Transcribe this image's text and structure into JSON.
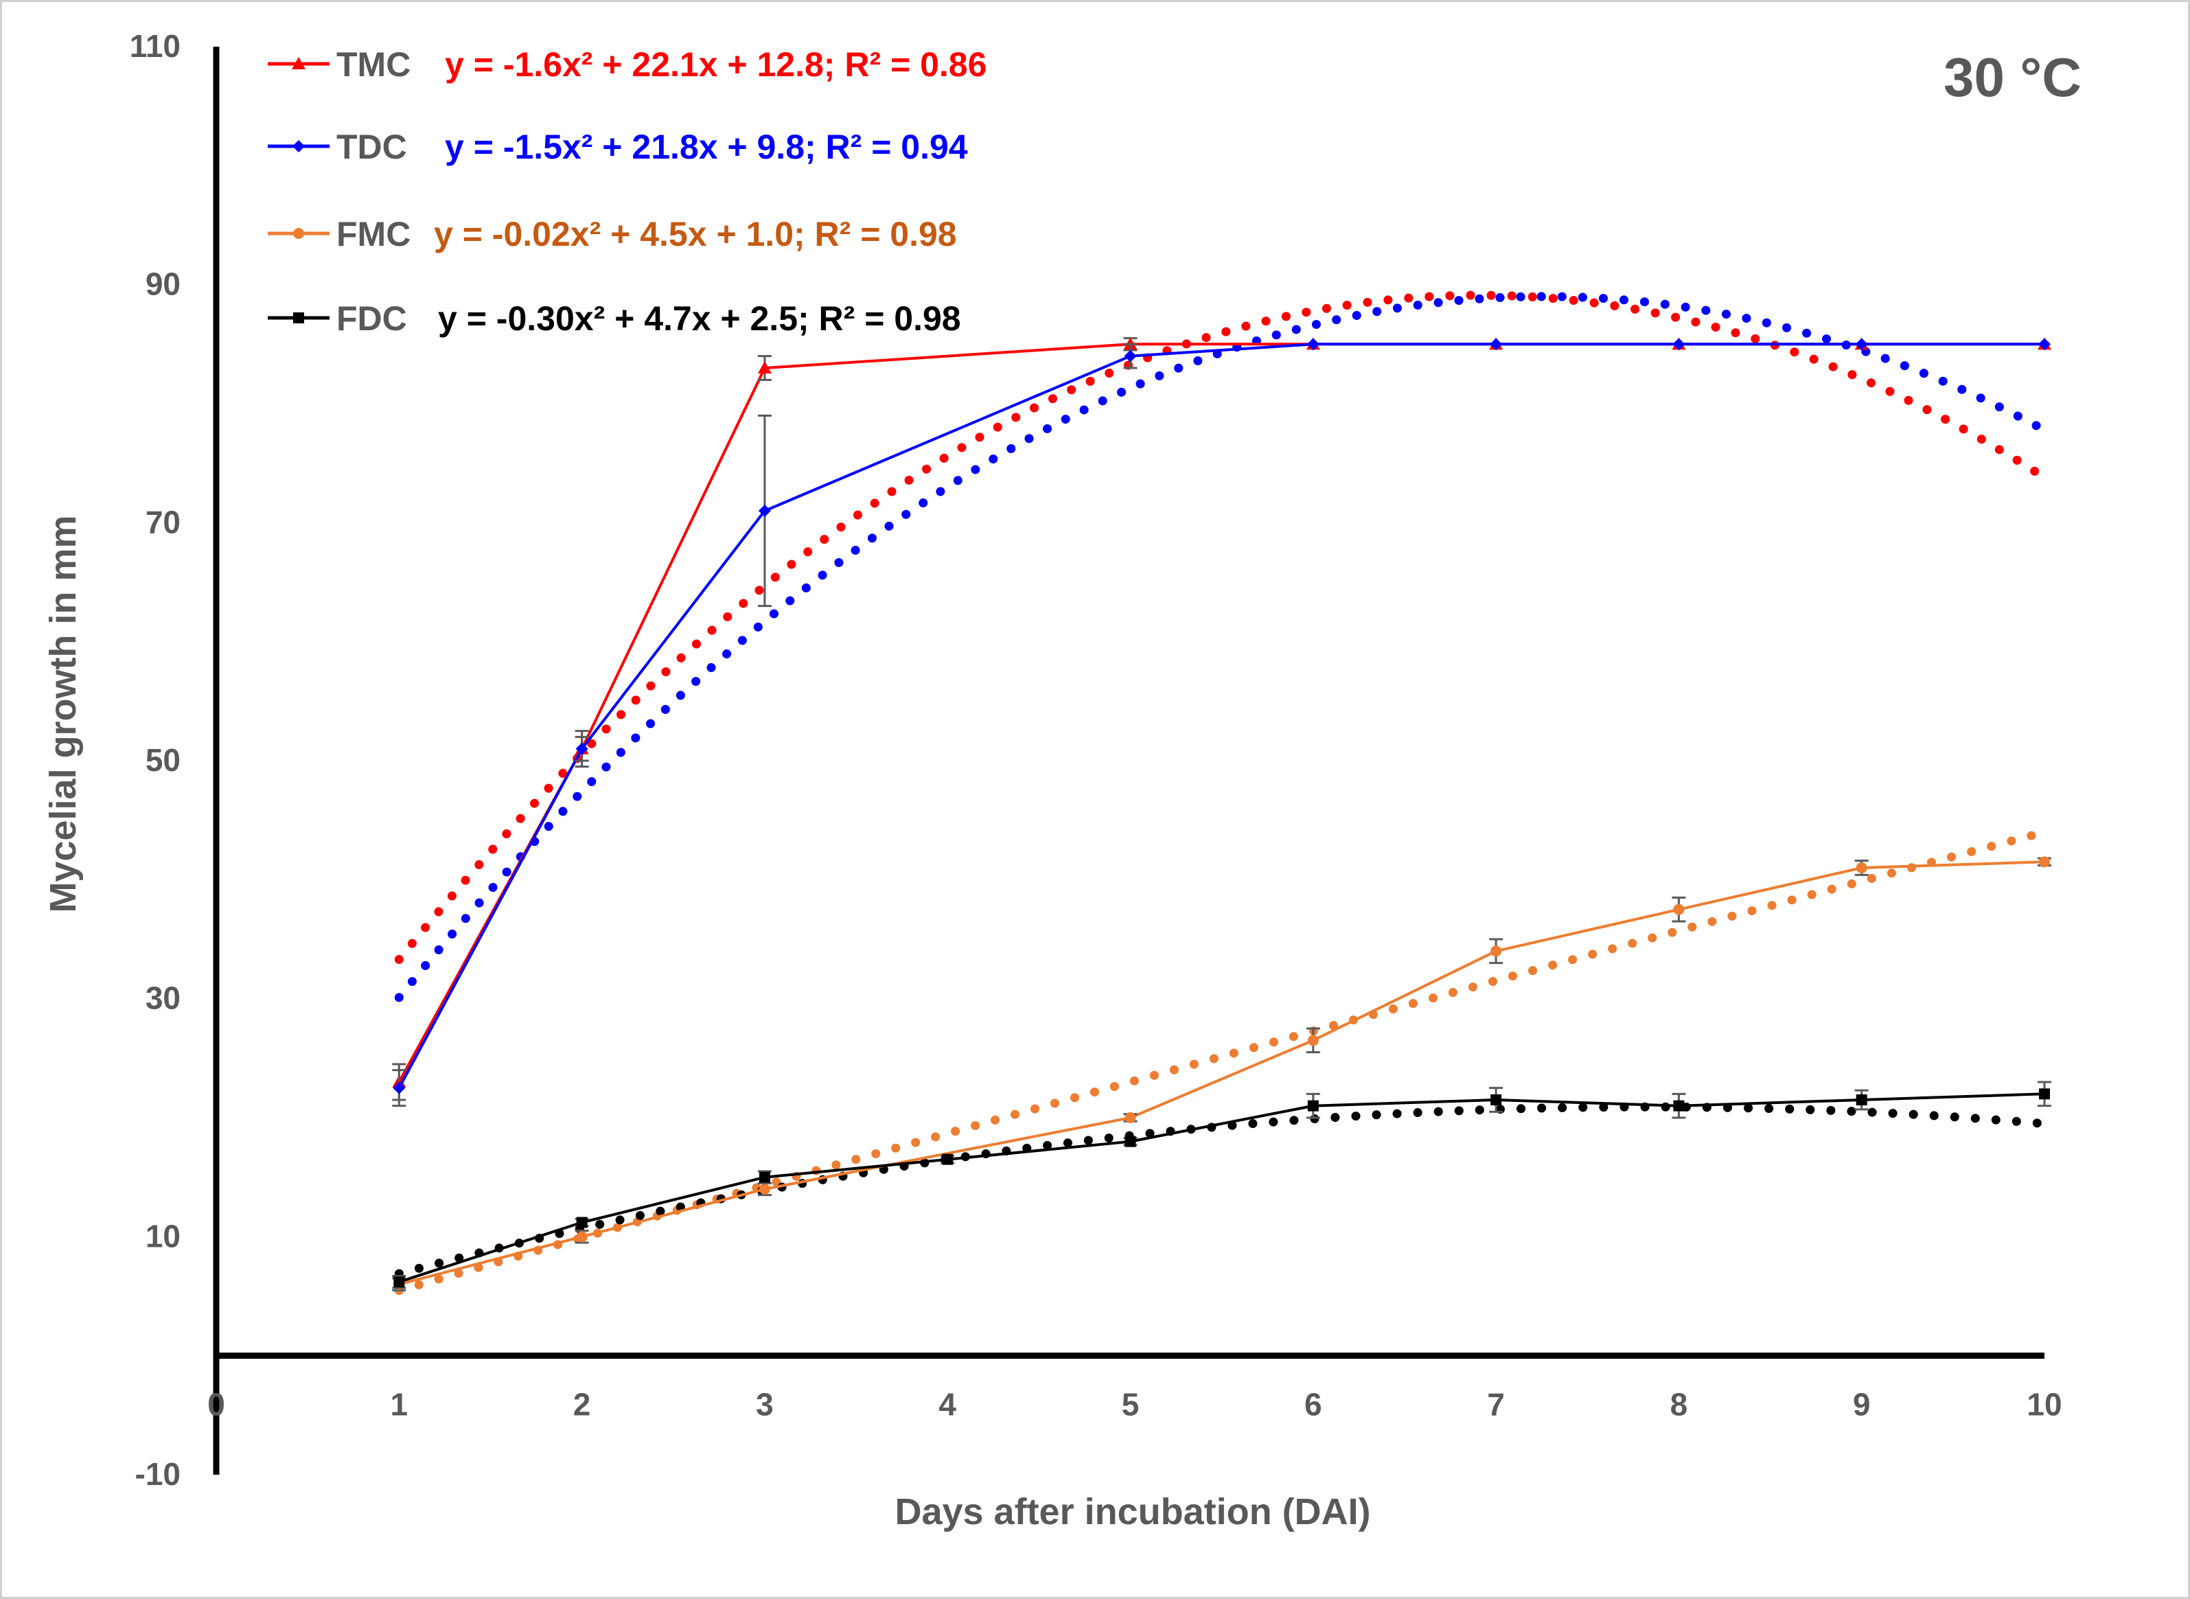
{
  "chart_data": {
    "type": "line",
    "title": "30 °C",
    "xlabel": "Days after incubation (DAI)",
    "ylabel": "Mycelial growth in mm",
    "xlim": [
      0,
      10
    ],
    "ylim": [
      -10,
      110
    ],
    "x_ticks": [
      0,
      1,
      2,
      3,
      4,
      5,
      6,
      7,
      8,
      9,
      10
    ],
    "y_ticks": [
      -10,
      10,
      30,
      50,
      70,
      90,
      110
    ],
    "x": [
      1,
      2,
      3,
      4,
      5,
      6,
      7,
      8,
      9,
      10
    ],
    "series": [
      {
        "name": "TMC",
        "color": "#ff0000",
        "marker": "triangle",
        "equation": "y = -1.6x² + 22.1x + 12.8; R² = 0.86",
        "trend": [
          -1.6,
          22.1,
          12.8
        ],
        "values": [
          23,
          51,
          83,
          null,
          85,
          85,
          85,
          85,
          85,
          85
        ],
        "errors": [
          1.5,
          1.5,
          1,
          null,
          0.5,
          0,
          0,
          0,
          0,
          0
        ]
      },
      {
        "name": "TDC",
        "color": "#0000ff",
        "marker": "diamond",
        "equation": "y = -1.5x² + 21.8x + 9.8; R² = 0.94",
        "trend": [
          -1.5,
          21.8,
          9.8
        ],
        "values": [
          22.5,
          51,
          71,
          null,
          84,
          85,
          85,
          85,
          85,
          85
        ],
        "errors": [
          1.5,
          1,
          8,
          null,
          1,
          0,
          0,
          0,
          0,
          0
        ]
      },
      {
        "name": "FMC",
        "color": "#ed7d31",
        "label_color": "#c55a11",
        "marker": "circle",
        "equation": "y = -0.02x² + 4.5x + 1.0; R² = 0.98",
        "trend": [
          -0.02,
          4.5,
          1.0
        ],
        "values": [
          6,
          10,
          14,
          null,
          20,
          26.5,
          34,
          37.5,
          41,
          41.5
        ],
        "errors": [
          0.5,
          0.5,
          0.5,
          null,
          0.3,
          1,
          1,
          1,
          0.6,
          0.3
        ]
      },
      {
        "name": "FDC",
        "color": "#000000",
        "marker": "square",
        "equation": "y = -0.30x² + 4.7x + 2.5; R² = 0.98",
        "trend": [
          -0.3,
          4.7,
          2.5
        ],
        "values": [
          6.2,
          11.2,
          15,
          16.5,
          18,
          21,
          21.5,
          21,
          21.5,
          22
        ],
        "errors": [
          0.5,
          0.3,
          0.5,
          0.3,
          0.3,
          1,
          1,
          1,
          0.8,
          1
        ]
      }
    ]
  }
}
